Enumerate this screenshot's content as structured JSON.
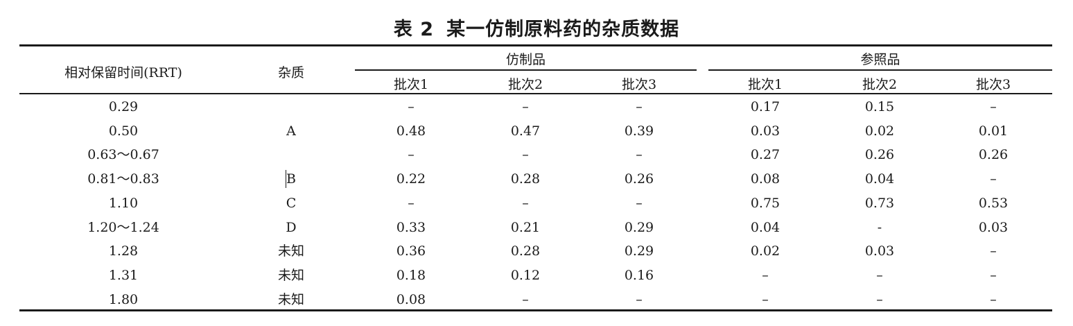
{
  "caption": {
    "number": "表 2",
    "title": "某一仿制原料药的杂质数据"
  },
  "header": {
    "rrt": "相对保留时间(RRT)",
    "impurity": "杂质",
    "group_generic": "仿制品",
    "group_reference": "参照品",
    "batches": [
      "批次1",
      "批次2",
      "批次3",
      "批次1",
      "批次2",
      "批次3"
    ]
  },
  "rows": [
    {
      "rrt": "0.29",
      "impurity": "",
      "values": [
        "–",
        "–",
        "–",
        "0.17",
        "0.15",
        "–"
      ]
    },
    {
      "rrt": "0.50",
      "impurity": "A",
      "values": [
        "0.48",
        "0.47",
        "0.39",
        "0.03",
        "0.02",
        "0.01"
      ]
    },
    {
      "rrt": "0.63～0.67",
      "impurity": "",
      "values": [
        "–",
        "–",
        "–",
        "0.27",
        "0.26",
        "0.26"
      ]
    },
    {
      "rrt": "0.81～0.83",
      "impurity": "B",
      "values": [
        "0.22",
        "0.28",
        "0.26",
        "0.08",
        "0.04",
        "–"
      ]
    },
    {
      "rrt": "1.10",
      "impurity": "C",
      "values": [
        "–",
        "–",
        "–",
        "0.75",
        "0.73",
        "0.53"
      ]
    },
    {
      "rrt": "1.20～1.24",
      "impurity": "D",
      "values": [
        "0.33",
        "0.21",
        "0.29",
        "0.04",
        "-",
        "0.03"
      ]
    },
    {
      "rrt": "1.28",
      "impurity": "未知",
      "values": [
        "0.36",
        "0.28",
        "0.29",
        "0.02",
        "0.03",
        "–"
      ]
    },
    {
      "rrt": "1.31",
      "impurity": "未知",
      "values": [
        "0.18",
        "0.12",
        "0.16",
        "–",
        "–",
        "–"
      ]
    },
    {
      "rrt": "1.80",
      "impurity": "未知",
      "values": [
        "0.08",
        "–",
        "–",
        "–",
        "–",
        "–"
      ]
    }
  ]
}
